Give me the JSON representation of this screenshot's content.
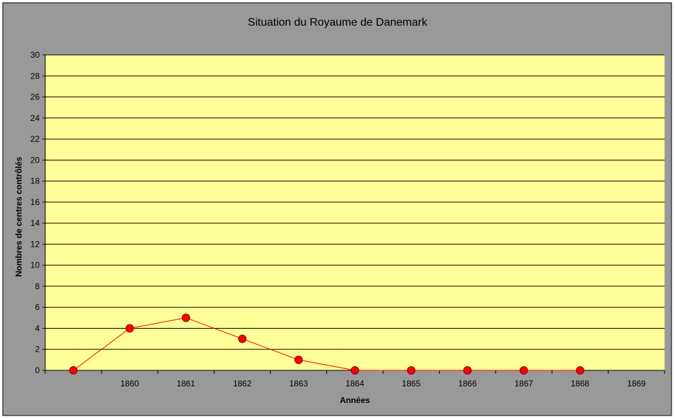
{
  "chart_data": {
    "type": "line",
    "title": "Situation du Royaume de Danemark",
    "xlabel": "Années",
    "ylabel": "Nombres de centres contrôlés",
    "categories": [
      "",
      "1860",
      "1861",
      "1862",
      "1863",
      "1864",
      "1865",
      "1866",
      "1867",
      "1868",
      "1869"
    ],
    "series": [
      {
        "values": [
          0,
          4,
          5,
          3,
          1,
          0,
          0,
          0,
          0,
          0,
          null
        ]
      }
    ],
    "ylim": [
      0,
      30
    ],
    "yticks": [
      "0",
      "2",
      "4",
      "6",
      "8",
      "10",
      "12",
      "14",
      "16",
      "18",
      "20",
      "22",
      "24",
      "26",
      "28",
      "30"
    ],
    "grid": true,
    "legend": "none"
  },
  "colors": {
    "frame_background": "#999999",
    "plot_background": "#ffff99",
    "gridline": "#000000",
    "line": "#ff0000",
    "marker_fill": "#ff0000",
    "marker_edge": "#800000"
  }
}
